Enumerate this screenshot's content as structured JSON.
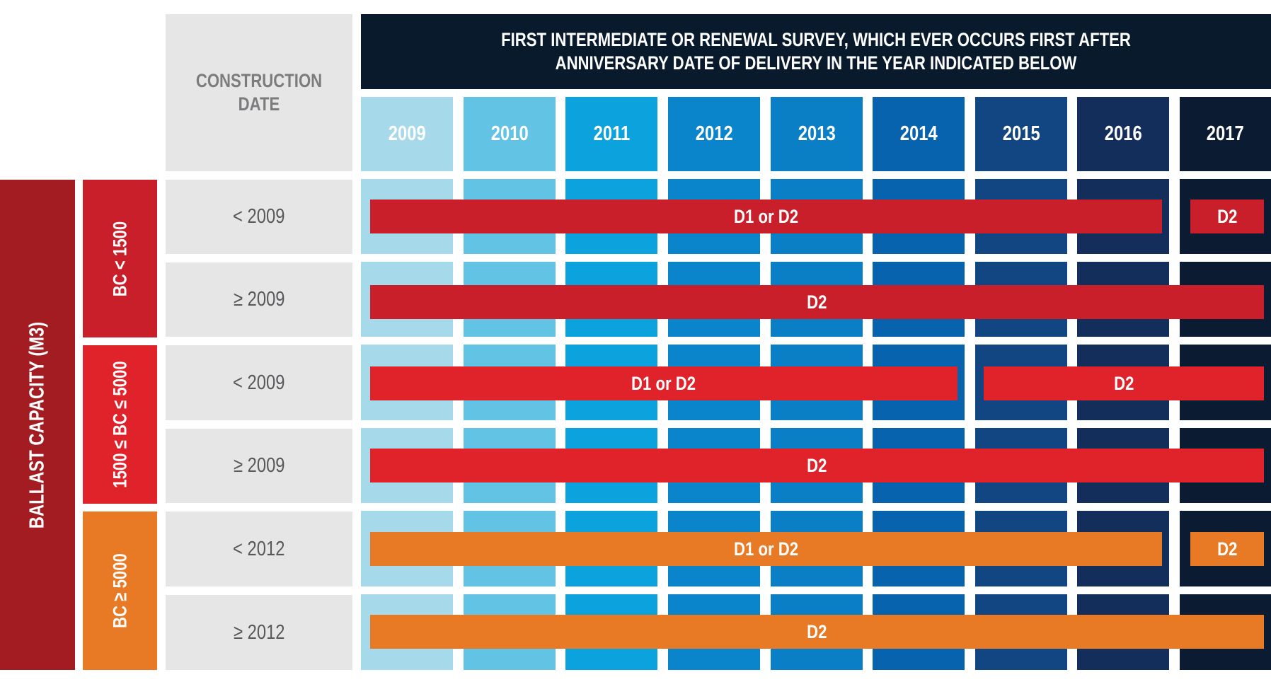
{
  "header": {
    "line1": "FIRST INTERMEDIATE OR RENEWAL SURVEY, WHICH EVER OCCURS FIRST AFTER",
    "line2": "ANNIVERSARY DATE OF DELIVERY IN THE YEAR INDICATED BELOW"
  },
  "construction_header": {
    "line1": "CONSTRUCTION",
    "line2": "DATE"
  },
  "years": [
    {
      "label": "2009",
      "color": "#a6d9ea"
    },
    {
      "label": "2010",
      "color": "#63c3e5"
    },
    {
      "label": "2011",
      "color": "#0ba2dd"
    },
    {
      "label": "2012",
      "color": "#0a85cc"
    },
    {
      "label": "2013",
      "color": "#0a7fc6"
    },
    {
      "label": "2014",
      "color": "#0763ad"
    },
    {
      "label": "2015",
      "color": "#124682"
    },
    {
      "label": "2016",
      "color": "#142e5c"
    },
    {
      "label": "2017",
      "color": "#0b1b31"
    }
  ],
  "ballast_label": "BALLAST CAPACITY (M3)",
  "groups": [
    {
      "label": "BC < 1500",
      "color": "#c81f2a"
    },
    {
      "label": "1500 ≤ BC ≤ 5000",
      "color": "#e0222b"
    },
    {
      "label": "BC ≥ 5000",
      "color": "#e87a25"
    }
  ],
  "rows": [
    {
      "date": "< 2009",
      "bars": [
        {
          "text": "D1 or D2",
          "from": "2009",
          "to": "2016"
        },
        {
          "text": "D2",
          "from": "2017",
          "to": "2017"
        }
      ]
    },
    {
      "date": "≥ 2009",
      "bars": [
        {
          "text": "D2",
          "from": "2009",
          "to": "2017"
        }
      ]
    },
    {
      "date": "< 2009",
      "bars": [
        {
          "text": "D1 or D2",
          "from": "2009",
          "to": "2014"
        },
        {
          "text": "D2",
          "from": "2015",
          "to": "2017"
        }
      ]
    },
    {
      "date": "≥ 2009",
      "bars": [
        {
          "text": "D2",
          "from": "2009",
          "to": "2017"
        }
      ]
    },
    {
      "date": "< 2012",
      "bars": [
        {
          "text": "D1 or D2",
          "from": "2009",
          "to": "2016"
        },
        {
          "text": "D2",
          "from": "2017",
          "to": "2017"
        }
      ]
    },
    {
      "date": "≥ 2012",
      "bars": [
        {
          "text": "D2",
          "from": "2009",
          "to": "2017"
        }
      ]
    }
  ]
}
